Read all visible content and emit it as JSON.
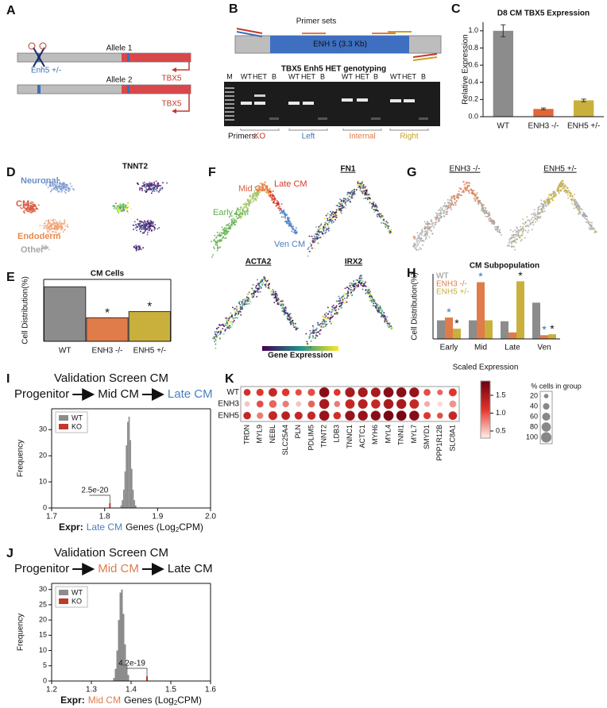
{
  "panel_labels": [
    "A",
    "B",
    "C",
    "D",
    "E",
    "F",
    "G",
    "H",
    "I",
    "J",
    "K"
  ],
  "allele_diagram": {
    "allele_1": "Allele 1",
    "allele_2": "Allele 2",
    "enhancer": "Enh5 +/-",
    "gene_1": "TBX5",
    "gene_2": "TBX5"
  },
  "genotyping": {
    "primer_title": "Primer sets",
    "enhancer": "ENH 5 (3.3 Kb)",
    "gel_title": "TBX5 Enh5 HET genotyping",
    "lanes": [
      "M",
      "WT",
      "HET",
      "B",
      "WT",
      "HET",
      "B",
      "WT",
      "HET",
      "B",
      "WT",
      "HET",
      "B"
    ],
    "primers_label": "Primers:",
    "primers": [
      {
        "name": "KO",
        "color": "#c0392b"
      },
      {
        "name": "Left",
        "color": "#3b6fb6"
      },
      {
        "name": "Internal",
        "color": "#e07b4a"
      },
      {
        "name": "Right",
        "color": "#c9a227"
      }
    ]
  },
  "umap_clusters": {
    "labels": [
      {
        "text": "Neuronal",
        "color": "#6a8fc7"
      },
      {
        "text": "CMs",
        "color": "#d9573f"
      },
      {
        "text": "Endoderm",
        "color": "#e8894f"
      },
      {
        "text": "Other",
        "color": "#a6a6a6"
      }
    ],
    "gene": "TNNT2"
  },
  "umap_trajectory": {
    "labels": [
      {
        "text": "Mid CM",
        "color": "#e0603a"
      },
      {
        "text": "Late CM",
        "color": "#d63a2a"
      },
      {
        "text": "Early CM",
        "color": "#5fae4e"
      },
      {
        "text": "Ven CM",
        "color": "#4a7fc1"
      }
    ],
    "genes": [
      "FN1",
      "ACTA2",
      "IRX2"
    ],
    "colorbar_label": "Gene Expression"
  },
  "umap_genotype": {
    "titles": [
      "ENH3 -/-",
      "ENH5 +/-"
    ]
  },
  "chart_data": [
    {
      "type": "bar",
      "title": "D8 CM TBX5 Expression",
      "ylabel": "Relative Expression",
      "categories": [
        "WT",
        "ENH3 -/-",
        "ENH5 +/-"
      ],
      "values": [
        1.0,
        0.09,
        0.19
      ],
      "errors": [
        0.07,
        0.01,
        0.015
      ],
      "colors": [
        "#8c8c8c",
        "#e0673a",
        "#c9b03c"
      ],
      "ylim": [
        0,
        1.1
      ],
      "yticks": [
        {
          "value": 0,
          "label": "0.0"
        },
        0.2,
        0.4,
        0.6,
        0.8,
        {
          "value": 1,
          "label": "1.0"
        }
      ]
    },
    {
      "type": "bar",
      "title": "CM Cells",
      "ylabel": "Cell Distribution(%)",
      "categories": [
        "WT",
        "ENH3 -/-",
        "ENH5 +/-"
      ],
      "values": [
        44,
        19,
        24
      ],
      "colors": [
        "#8c8c8c",
        "#e07b4a",
        "#c9b03c"
      ],
      "ylim": [
        0,
        50
      ],
      "significant": [
        false,
        true,
        true
      ],
      "significance_label": "*"
    },
    {
      "type": "grouped_bar",
      "title": "CM Subpopulation",
      "ylabel": "Cell Distribution(%)",
      "categories": [
        "Early",
        "Mid",
        "Late",
        "Ven"
      ],
      "ylim": [
        0,
        70
      ],
      "series": [
        {
          "name": "WT",
          "color": "#8c8c8c",
          "values": [
            20,
            20,
            19,
            39
          ],
          "significant": [
            false,
            false,
            false,
            false
          ]
        },
        {
          "name": "ENH3 -/-",
          "color": "#e07b4a",
          "values": [
            23,
            61,
            7,
            4
          ],
          "significant": [
            true,
            true,
            false,
            true
          ]
        },
        {
          "name": "ENH5 +/-",
          "color": "#c9b03c",
          "values": [
            11,
            20,
            62,
            5
          ],
          "significant": [
            true,
            false,
            true,
            true
          ]
        }
      ],
      "significance_label": "*"
    },
    {
      "type": "histogram",
      "title": "Validation Screen CM",
      "flow": [
        "Progenitor",
        "Mid CM",
        "Late CM"
      ],
      "highlight": {
        "index": 2,
        "color": "#4a7fc1"
      },
      "ylabel": "Frequency",
      "xlabel": {
        "prefix": "Expr:",
        "highlight": "Late CM",
        "suffix": "Genes (Log",
        "subscript": "2",
        "end": "CPM)"
      },
      "bins": [
        1.83,
        1.8325,
        1.835,
        1.8375,
        1.84,
        1.8425,
        1.845,
        1.8475,
        1.85,
        1.8525,
        1.855,
        1.8575,
        1.86
      ],
      "values": [
        1,
        3,
        7,
        14,
        24,
        33,
        35,
        26,
        15,
        7,
        3,
        1
      ],
      "color": "#8c8c8c",
      "legend": [
        {
          "name": "WT",
          "color": "#8c8c8c"
        },
        {
          "name": "KO",
          "color": "#c0392b"
        }
      ],
      "ko_marker": {
        "x": 1.81,
        "label": "2.5e-20"
      },
      "xlim": [
        1.7,
        2.0
      ],
      "xticks": [
        1.7,
        1.8,
        1.9,
        {
          "value": 2,
          "label": "2.0"
        }
      ],
      "ylim": [
        0,
        38
      ],
      "yticks": [
        0,
        10,
        20,
        30
      ]
    },
    {
      "type": "histogram",
      "title": "Validation Screen CM",
      "flow": [
        "Progenitor",
        "Mid CM",
        "Late CM"
      ],
      "highlight": {
        "index": 1,
        "color": "#e07b4a"
      },
      "ylabel": "Frequency",
      "xlabel": {
        "prefix": "Expr:",
        "highlight": "Mid CM",
        "suffix": "Genes (Log",
        "subscript": "2",
        "end": "CPM)"
      },
      "bins": [
        1.355,
        1.359,
        1.363,
        1.367,
        1.371,
        1.375,
        1.379,
        1.383,
        1.387,
        1.391,
        1.395
      ],
      "values": [
        1,
        4,
        10,
        20,
        29,
        30,
        22,
        12,
        5,
        2
      ],
      "color": "#8c8c8c",
      "legend": [
        {
          "name": "WT",
          "color": "#8c8c8c"
        },
        {
          "name": "KO",
          "color": "#c0392b"
        }
      ],
      "ko_marker": {
        "x": 1.44,
        "label": "4.2e-19"
      },
      "xlim": [
        1.2,
        1.6
      ],
      "xticks": [
        1.2,
        1.3,
        1.4,
        1.5,
        1.6
      ],
      "ylim": [
        0,
        32
      ],
      "yticks": [
        0,
        5,
        10,
        15,
        20,
        25,
        30
      ]
    },
    {
      "type": "dot",
      "categories": [
        "TRDN",
        "MYL9",
        "NEBL",
        "SLC25A4",
        "PLN",
        "PDLIM5",
        "TNNT2",
        "LDB3",
        "TNNC1",
        "ACTC1",
        "MYH6",
        "MYL4",
        "TNNI1",
        "MYL7",
        "SMYD1",
        "PPP1R12B",
        "SLC8A1"
      ],
      "series": [
        {
          "name": "WT",
          "values": [
            1.2,
            1.1,
            1.3,
            1.1,
            1.0,
            1.0,
            1.7,
            1.1,
            1.5,
            1.5,
            1.5,
            1.7,
            1.7,
            1.6,
            1.0,
            0.9,
            1.1
          ],
          "sizes": [
            45,
            50,
            70,
            55,
            40,
            50,
            98,
            45,
            90,
            90,
            88,
            97,
            96,
            92,
            45,
            30,
            60
          ]
        },
        {
          "name": "ENH3",
          "values": [
            0.5,
            1.0,
            0.9,
            0.8,
            0.5,
            0.9,
            1.5,
            0.8,
            1.3,
            1.4,
            1.3,
            1.5,
            1.5,
            1.3,
            0.6,
            0.4,
            0.7
          ],
          "sizes": [
            25,
            45,
            55,
            40,
            25,
            45,
            95,
            35,
            85,
            88,
            80,
            94,
            93,
            85,
            30,
            20,
            45
          ]
        },
        {
          "name": "ENH5",
          "values": [
            1.3,
            0.8,
            1.3,
            1.4,
            1.3,
            1.3,
            1.6,
            1.2,
            1.6,
            1.6,
            1.7,
            1.8,
            1.8,
            1.7,
            1.1,
            1.0,
            1.3
          ],
          "sizes": [
            55,
            40,
            75,
            70,
            60,
            65,
            98,
            55,
            92,
            93,
            92,
            98,
            98,
            95,
            50,
            35,
            70
          ]
        }
      ],
      "color_title": "Scaled Expression",
      "cmap": [
        "#fff1ea",
        "#e3342c",
        "#6b0010"
      ],
      "clim": [
        0.3,
        1.9
      ],
      "cticks": [
        0.5,
        {
          "value": 1,
          "label": "1.0"
        },
        1.5
      ],
      "size_legend": {
        "title": "% cells in group",
        "values": [
          20,
          40,
          60,
          80,
          100
        ]
      }
    }
  ]
}
